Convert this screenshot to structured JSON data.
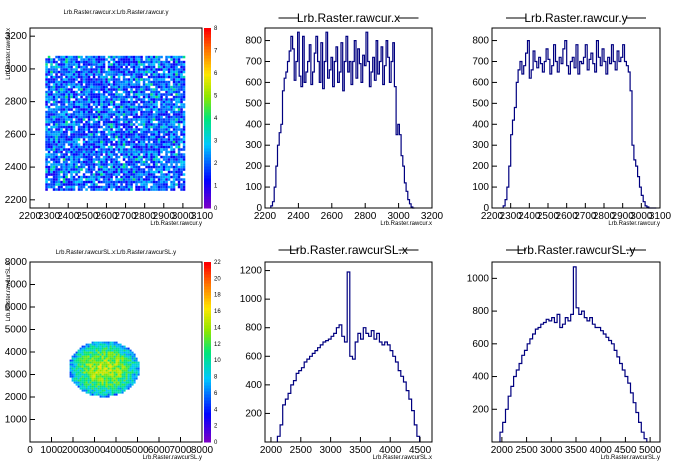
{
  "chart_data": [
    {
      "type": "heatmap",
      "title": "Lrb.Raster.rawcur.x:Lrb.Raster.rawcur.y",
      "xlabel": "Lrb.Raster.rawcur.y",
      "ylabel": "Lrb.Raster.rawcur.x",
      "xlim": [
        2200,
        3100
      ],
      "ylim": [
        2150,
        3250
      ],
      "xticks": [
        "2200",
        "2300",
        "2400",
        "2500",
        "2600",
        "2700",
        "2800",
        "2900",
        "3000",
        "3100"
      ],
      "yticks": [
        "2200",
        "2400",
        "2600",
        "2800",
        "3000",
        "3200"
      ],
      "region": {
        "x": [
          2280,
          3000
        ],
        "y": [
          2270,
          3080
        ]
      },
      "colorbar": {
        "min": 0,
        "max": 8,
        "ticks": [
          "0",
          "1",
          "2",
          "3",
          "4",
          "5",
          "6",
          "7",
          "8"
        ]
      }
    },
    {
      "type": "bar",
      "title": "Lrb.Raster.rawcur.x",
      "xlabel": "Lrb.Raster.rawcur.x",
      "xlim": [
        2200,
        3200
      ],
      "ylim": [
        0,
        860
      ],
      "xticks": [
        "2200",
        "2400",
        "2600",
        "2800",
        "3000",
        "3200"
      ],
      "yticks": [
        "0",
        "100",
        "200",
        "300",
        "400",
        "500",
        "600",
        "700",
        "800"
      ],
      "x": [
        2240,
        2250,
        2260,
        2270,
        2280,
        2290,
        2300,
        2310,
        2320,
        2330,
        2340,
        2350,
        2360,
        2370,
        2380,
        2390,
        2400,
        2410,
        2420,
        2430,
        2440,
        2450,
        2460,
        2470,
        2480,
        2490,
        2500,
        2510,
        2520,
        2530,
        2540,
        2550,
        2560,
        2570,
        2580,
        2590,
        2600,
        2610,
        2620,
        2630,
        2640,
        2650,
        2660,
        2670,
        2680,
        2690,
        2700,
        2710,
        2720,
        2730,
        2740,
        2750,
        2760,
        2770,
        2780,
        2790,
        2800,
        2810,
        2820,
        2830,
        2840,
        2850,
        2860,
        2870,
        2880,
        2890,
        2900,
        2910,
        2920,
        2930,
        2940,
        2950,
        2960,
        2970,
        2980,
        2990,
        3000,
        3010,
        3020,
        3030,
        3040,
        3050,
        3060,
        3070,
        3080,
        3090
      ],
      "values": [
        10,
        30,
        100,
        200,
        300,
        360,
        400,
        560,
        620,
        650,
        700,
        750,
        820,
        760,
        610,
        700,
        840,
        630,
        580,
        820,
        600,
        650,
        700,
        780,
        590,
        650,
        740,
        820,
        700,
        600,
        790,
        570,
        700,
        840,
        620,
        660,
        720,
        580,
        700,
        770,
        600,
        650,
        790,
        560,
        700,
        820,
        650,
        700,
        590,
        700,
        800,
        620,
        760,
        690,
        600,
        730,
        680,
        840,
        700,
        580,
        650,
        720,
        610,
        800,
        640,
        700,
        770,
        590,
        680,
        800,
        720,
        600,
        700,
        790,
        580,
        350,
        400,
        350,
        250,
        200,
        120,
        80,
        40,
        20,
        5,
        0
      ]
    },
    {
      "type": "bar",
      "title": "Lrb.Raster.rawcur.y",
      "xlabel": "Lrb.Raster.rawcur.y",
      "xlim": [
        2200,
        3100
      ],
      "ylim": [
        0,
        860
      ],
      "xticks": [
        "2200",
        "2300",
        "2400",
        "2500",
        "2600",
        "2700",
        "2800",
        "2900",
        "3000",
        "3100"
      ],
      "yticks": [
        "0",
        "100",
        "200",
        "300",
        "400",
        "500",
        "600",
        "700",
        "800"
      ],
      "x": [
        2265,
        2275,
        2285,
        2295,
        2305,
        2315,
        2325,
        2335,
        2345,
        2355,
        2365,
        2375,
        2385,
        2395,
        2405,
        2415,
        2425,
        2435,
        2445,
        2455,
        2465,
        2475,
        2485,
        2495,
        2505,
        2515,
        2525,
        2535,
        2545,
        2555,
        2565,
        2575,
        2585,
        2595,
        2605,
        2615,
        2625,
        2635,
        2645,
        2655,
        2665,
        2675,
        2685,
        2695,
        2705,
        2715,
        2725,
        2735,
        2745,
        2755,
        2765,
        2775,
        2785,
        2795,
        2805,
        2815,
        2825,
        2835,
        2845,
        2855,
        2865,
        2875,
        2885,
        2895,
        2905,
        2915,
        2925,
        2935,
        2945,
        2955,
        2965,
        2975,
        2985,
        2995,
        3005,
        3015,
        3025,
        3035,
        3045,
        3055,
        3065,
        3075
      ],
      "values": [
        10,
        40,
        100,
        200,
        350,
        420,
        480,
        600,
        660,
        700,
        640,
        680,
        740,
        800,
        620,
        660,
        750,
        700,
        670,
        720,
        690,
        650,
        700,
        760,
        710,
        640,
        680,
        780,
        700,
        650,
        720,
        690,
        760,
        800,
        680,
        640,
        700,
        720,
        670,
        780,
        640,
        700,
        690,
        720,
        780,
        660,
        710,
        740,
        690,
        650,
        800,
        720,
        680,
        760,
        700,
        640,
        720,
        690,
        780,
        700,
        660,
        750,
        700,
        720,
        780,
        700,
        680,
        650,
        560,
        300,
        230,
        200,
        150,
        100,
        60,
        30,
        10,
        5,
        0,
        0,
        0,
        0
      ]
    },
    {
      "type": "heatmap",
      "title": "Lrb.Raster.rawcurSL.x:Lrb.Raster.rawcurSL.y",
      "xlabel": "Lrb.Raster.rawcurSL.y",
      "ylabel": "Lrb.Raster.rawcurSL.x",
      "xlim": [
        0,
        8000
      ],
      "ylim": [
        0,
        8000
      ],
      "xticks": [
        "0",
        "1000",
        "2000",
        "3000",
        "4000",
        "5000",
        "6000",
        "7000",
        "8000"
      ],
      "yticks": [
        "1000",
        "2000",
        "3000",
        "4000",
        "5000",
        "6000",
        "7000",
        "8000"
      ],
      "region": {
        "center": [
          3400,
          3300
        ],
        "radius": [
          1650,
          1250
        ]
      },
      "colorbar": {
        "min": 0,
        "max": 22,
        "ticks": [
          "0",
          "2",
          "4",
          "6",
          "8",
          "10",
          "12",
          "14",
          "16",
          "18",
          "20",
          "22"
        ]
      }
    },
    {
      "type": "bar",
      "title": "Lrb.Raster.rawcurSL.x",
      "xlabel": "Lrb.Raster.rawcurSL.x",
      "xlim": [
        1900,
        4700
      ],
      "ylim": [
        0,
        1260
      ],
      "xticks": [
        "2000",
        "2500",
        "3000",
        "3500",
        "4000",
        "4500"
      ],
      "yticks": [
        "200",
        "400",
        "600",
        "800",
        "1000",
        "1200"
      ],
      "x": [
        2130,
        2175,
        2220,
        2265,
        2310,
        2355,
        2400,
        2445,
        2490,
        2535,
        2580,
        2625,
        2670,
        2715,
        2760,
        2805,
        2850,
        2895,
        2940,
        2985,
        3030,
        3075,
        3120,
        3165,
        3210,
        3255,
        3300,
        3345,
        3390,
        3435,
        3480,
        3525,
        3570,
        3615,
        3660,
        3705,
        3750,
        3795,
        3840,
        3885,
        3930,
        3975,
        4020,
        4065,
        4110,
        4155,
        4200,
        4245,
        4290,
        4335,
        4380,
        4425,
        4470
      ],
      "values": [
        40,
        120,
        260,
        300,
        340,
        400,
        430,
        480,
        500,
        520,
        560,
        580,
        600,
        620,
        640,
        660,
        680,
        700,
        710,
        720,
        740,
        760,
        800,
        820,
        740,
        700,
        1190,
        600,
        580,
        700,
        760,
        720,
        800,
        760,
        740,
        780,
        720,
        760,
        700,
        680,
        700,
        680,
        640,
        600,
        560,
        500,
        460,
        420,
        360,
        300,
        220,
        120,
        40
      ]
    },
    {
      "type": "bar",
      "title": "Lrb.Raster.rawcurSL.y",
      "xlabel": "Lrb.Raster.rawcurSL.y",
      "xlim": [
        1800,
        5200
      ],
      "ylim": [
        0,
        1100
      ],
      "xticks": [
        "2000",
        "2500",
        "3000",
        "3500",
        "4000",
        "4500",
        "5000"
      ],
      "yticks": [
        "200",
        "400",
        "600",
        "800",
        "1000"
      ],
      "x": [
        1990,
        2045,
        2100,
        2155,
        2210,
        2265,
        2320,
        2375,
        2430,
        2485,
        2540,
        2595,
        2650,
        2705,
        2760,
        2815,
        2870,
        2925,
        2980,
        3035,
        3090,
        3145,
        3200,
        3255,
        3310,
        3365,
        3420,
        3475,
        3530,
        3585,
        3640,
        3695,
        3750,
        3805,
        3860,
        3915,
        3970,
        4025,
        4080,
        4135,
        4190,
        4245,
        4300,
        4355,
        4410,
        4465,
        4520,
        4575,
        4630,
        4685,
        4740,
        4795,
        4850,
        4905
      ],
      "values": [
        60,
        120,
        200,
        280,
        340,
        400,
        440,
        480,
        530,
        560,
        600,
        630,
        660,
        690,
        700,
        720,
        730,
        750,
        740,
        760,
        730,
        780,
        700,
        720,
        760,
        740,
        780,
        1070,
        820,
        780,
        800,
        760,
        740,
        760,
        720,
        700,
        700,
        680,
        660,
        640,
        620,
        600,
        560,
        520,
        480,
        440,
        400,
        360,
        300,
        240,
        180,
        120,
        60,
        20
      ]
    }
  ]
}
